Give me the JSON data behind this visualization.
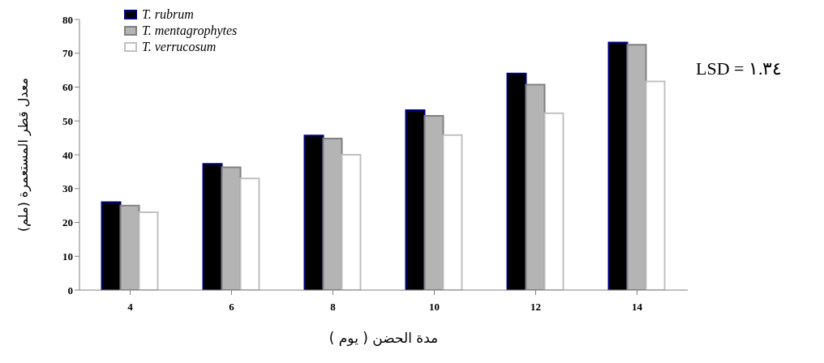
{
  "chart_data": {
    "type": "bar",
    "xlabel": "مدة الحضن ( يوم )",
    "ylabel": "معدل قطر المستعمرة (ملم)",
    "categories": [
      "4",
      "6",
      "8",
      "10",
      "12",
      "14"
    ],
    "series": [
      {
        "name": "T. rubrum",
        "color": "#000000",
        "values": [
          26,
          37.3,
          45.7,
          53.2,
          64,
          73.2
        ]
      },
      {
        "name": "T. mentagrophytes",
        "color": "#b4b4b4",
        "values": [
          25,
          36.3,
          44.8,
          51.5,
          60.7,
          72.5
        ]
      },
      {
        "name": "T. verrucosum",
        "color": "#ffffff",
        "values": [
          23,
          33,
          40,
          45.8,
          52.3,
          61.7
        ]
      }
    ],
    "ylim": [
      0,
      80
    ],
    "yticks": [
      0,
      10,
      20,
      30,
      40,
      50,
      60,
      70,
      80
    ],
    "grid": false,
    "legend": "top left",
    "annotations": [
      "LSD = ١.٣٤"
    ]
  }
}
